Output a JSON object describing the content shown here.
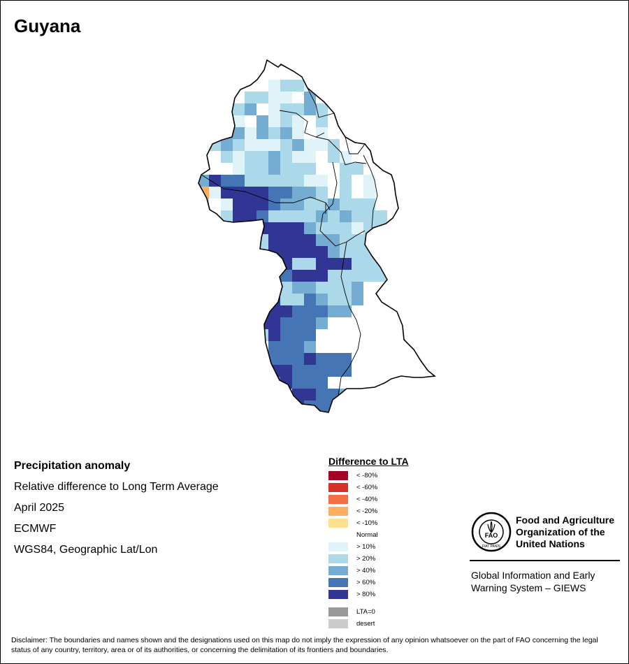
{
  "title": "Guyana",
  "map_info": {
    "heading": "Precipitation anomaly",
    "subtitle": "Relative difference to Long Term Average",
    "period": "April 2025",
    "model": "ECMWF",
    "projection": "WGS84, Geographic Lat/Lon"
  },
  "legend": {
    "title": "Difference to LTA",
    "items": [
      {
        "label": "< -80%",
        "color": "#A50026"
      },
      {
        "label": "< -60%",
        "color": "#D73027"
      },
      {
        "label": "< -40%",
        "color": "#F46D43"
      },
      {
        "label": "< -20%",
        "color": "#FDAE61"
      },
      {
        "label": "< -10%",
        "color": "#FEE090"
      },
      {
        "label": "Normal",
        "color": "#FFFFFF"
      },
      {
        "label": "> 10%",
        "color": "#E0F3F8"
      },
      {
        "label": "> 20%",
        "color": "#ABD9E9"
      },
      {
        "label": "> 40%",
        "color": "#74ADD1"
      },
      {
        "label": "> 60%",
        "color": "#4575B4"
      },
      {
        "label": "> 80%",
        "color": "#313695"
      }
    ],
    "extra": [
      {
        "label": "LTA=0",
        "color": "#999999"
      },
      {
        "label": "desert",
        "color": "#CCCCCC"
      }
    ]
  },
  "organization": {
    "logo_text": "FAO",
    "logo_ring_text": "FIAT PANIS",
    "name": "Food and Agriculture Organization of the United Nations",
    "program": "Global Information and Early Warning System – GIEWS"
  },
  "disclaimer": "Disclaimer: The boundaries and names shown and the designations used on this map do not imply the expression of any opinion whatsoever on the part of FAO concerning the legal status of any country, territory, area or of its authorities, or concerning the delimitation of its frontiers and boundaries."
}
